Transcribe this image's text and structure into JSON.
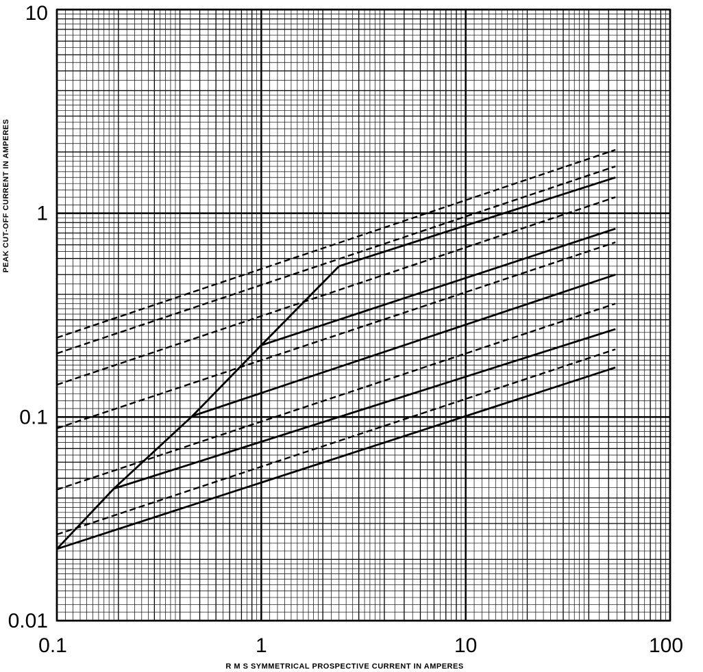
{
  "chart_data": {
    "type": "line",
    "title": "",
    "xlabel": "R M S SYMMETRICAL PROSPECTIVE CURRENT IN AMPERES",
    "ylabel": "PEAK CUT-OFF CURRENT IN AMPERES",
    "xscale": "log",
    "yscale": "log",
    "xlim": [
      0.1,
      100
    ],
    "ylim": [
      0.01,
      10
    ],
    "grid": true,
    "x_ticks": [
      "0.1",
      "1",
      "10",
      "100"
    ],
    "y_ticks": [
      "0.01",
      "0.1",
      "1",
      "10"
    ],
    "series": [
      {
        "style": "solid",
        "x": [
          0.1,
          0.19,
          0.46,
          1.0,
          2.4
        ],
        "y": [
          0.0225,
          0.0445,
          0.101,
          0.225,
          0.55
        ]
      },
      {
        "style": "solid",
        "x": [
          0.1,
          54
        ],
        "y": [
          0.0225,
          0.175
        ]
      },
      {
        "style": "dashed",
        "x": [
          0.1,
          54
        ],
        "y": [
          0.0265,
          0.215
        ]
      },
      {
        "style": "solid",
        "x": [
          0.19,
          54
        ],
        "y": [
          0.0445,
          0.27
        ]
      },
      {
        "style": "dashed",
        "x": [
          0.1,
          54
        ],
        "y": [
          0.044,
          0.36
        ]
      },
      {
        "style": "solid",
        "x": [
          0.46,
          54
        ],
        "y": [
          0.101,
          0.5
        ]
      },
      {
        "style": "dashed",
        "x": [
          0.1,
          54
        ],
        "y": [
          0.088,
          0.72
        ]
      },
      {
        "style": "solid",
        "x": [
          1.0,
          54
        ],
        "y": [
          0.225,
          0.84
        ]
      },
      {
        "style": "dashed",
        "x": [
          0.1,
          54
        ],
        "y": [
          0.144,
          1.2
        ]
      },
      {
        "style": "solid",
        "x": [
          2.4,
          54
        ],
        "y": [
          0.55,
          1.5
        ]
      },
      {
        "style": "dashed",
        "x": [
          0.1,
          54
        ],
        "y": [
          0.205,
          1.7
        ]
      },
      {
        "style": "dashed",
        "x": [
          0.1,
          54
        ],
        "y": [
          0.245,
          2.05
        ]
      }
    ]
  }
}
